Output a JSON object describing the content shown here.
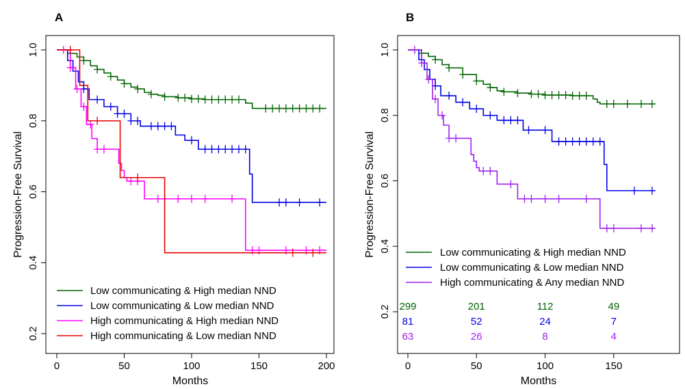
{
  "chart_data": [
    {
      "type": "line",
      "panel": "A",
      "xlabel": "Months",
      "ylabel": "Progression-Free Survival",
      "xlim": [
        0,
        200
      ],
      "ylim": [
        0.2,
        1.0
      ],
      "xticks": [
        0,
        50,
        100,
        150,
        200
      ],
      "yticks": [
        0.2,
        0.4,
        0.6,
        0.8,
        1.0
      ],
      "ytick_labels": [
        "0.2",
        "0.4",
        "0.6",
        "0.8",
        "1.0"
      ],
      "grid": false,
      "legend_position": "bottom-left",
      "series": [
        {
          "name": "Low communicating & High median NND",
          "color": "#006400",
          "x": [
            0,
            10,
            15,
            20,
            25,
            30,
            35,
            40,
            45,
            50,
            55,
            60,
            65,
            70,
            75,
            80,
            90,
            100,
            110,
            120,
            130,
            140,
            145,
            150,
            160,
            170,
            180,
            200
          ],
          "y": [
            1.0,
            0.99,
            0.98,
            0.97,
            0.955,
            0.945,
            0.935,
            0.925,
            0.915,
            0.905,
            0.895,
            0.89,
            0.88,
            0.875,
            0.872,
            0.868,
            0.865,
            0.862,
            0.86,
            0.86,
            0.86,
            0.85,
            0.835,
            0.835,
            0.835,
            0.835,
            0.835,
            0.835
          ],
          "censor_x": [
            10,
            20,
            30,
            40,
            50,
            60,
            70,
            80,
            90,
            95,
            100,
            105,
            110,
            115,
            120,
            125,
            130,
            135,
            155,
            160,
            165,
            170,
            175,
            180,
            185,
            190,
            195
          ]
        },
        {
          "name": "Low communicating & Low median NND",
          "color": "#0000e6",
          "x": [
            0,
            8,
            12,
            16,
            20,
            24,
            35,
            45,
            55,
            62,
            70,
            88,
            95,
            105,
            140,
            143,
            145,
            200
          ],
          "y": [
            1.0,
            0.97,
            0.94,
            0.91,
            0.89,
            0.86,
            0.84,
            0.82,
            0.8,
            0.785,
            0.785,
            0.76,
            0.745,
            0.72,
            0.72,
            0.65,
            0.57,
            0.57
          ],
          "censor_x": [
            20,
            30,
            40,
            45,
            50,
            55,
            60,
            70,
            75,
            80,
            85,
            100,
            110,
            115,
            120,
            125,
            130,
            135,
            140,
            165,
            170,
            180,
            195
          ]
        },
        {
          "name": "High communicating & High median NND",
          "color": "#ff00ff",
          "x": [
            0,
            10,
            14,
            18,
            22,
            26,
            30,
            40,
            46,
            48,
            50,
            52,
            65,
            140,
            200
          ],
          "y": [
            1.0,
            0.95,
            0.89,
            0.84,
            0.79,
            0.75,
            0.72,
            0.72,
            0.68,
            0.66,
            0.64,
            0.63,
            0.58,
            0.435,
            0.435
          ],
          "censor_x": [
            5,
            10,
            15,
            20,
            25,
            30,
            35,
            55,
            60,
            75,
            80,
            90,
            100,
            110,
            130,
            145,
            150,
            170,
            185,
            195
          ]
        },
        {
          "name": "High communicating & Low median NND",
          "color": "#e60000",
          "x": [
            0,
            17,
            23,
            47,
            80,
            200
          ],
          "y": [
            1.0,
            0.9,
            0.8,
            0.64,
            0.428,
            0.428
          ],
          "censor_x": [
            10,
            30,
            60,
            175,
            190
          ]
        }
      ]
    },
    {
      "type": "line",
      "panel": "B",
      "xlabel": "Months",
      "ylabel": "Progression-Free Survival",
      "xlim": [
        0,
        180
      ],
      "ylim": [
        0.2,
        1.0
      ],
      "xticks": [
        0,
        50,
        100,
        150
      ],
      "yticks": [
        0.2,
        0.4,
        0.6,
        0.8,
        1.0
      ],
      "ytick_labels": [
        "0.2",
        "0.4",
        "0.6",
        "0.8",
        "1.0"
      ],
      "grid": false,
      "legend_position": "bottom-left",
      "series": [
        {
          "name": "Low communicating & High median NND",
          "color": "#006400",
          "x": [
            0,
            10,
            15,
            20,
            25,
            30,
            40,
            50,
            55,
            60,
            65,
            70,
            80,
            90,
            100,
            120,
            135,
            138,
            140,
            180
          ],
          "y": [
            1.0,
            0.99,
            0.98,
            0.97,
            0.955,
            0.945,
            0.925,
            0.905,
            0.895,
            0.885,
            0.875,
            0.872,
            0.868,
            0.865,
            0.862,
            0.86,
            0.85,
            0.84,
            0.835,
            0.835
          ],
          "censor_x": [
            10,
            20,
            30,
            40,
            50,
            60,
            70,
            80,
            90,
            95,
            100,
            105,
            110,
            115,
            120,
            125,
            130,
            145,
            150,
            160,
            170,
            178
          ]
        },
        {
          "name": "Low communicating & Low median NND",
          "color": "#0000e6",
          "x": [
            0,
            8,
            12,
            16,
            20,
            24,
            35,
            45,
            55,
            65,
            75,
            84,
            95,
            105,
            140,
            143,
            145,
            180
          ],
          "y": [
            1.0,
            0.97,
            0.94,
            0.91,
            0.89,
            0.86,
            0.84,
            0.82,
            0.8,
            0.785,
            0.785,
            0.755,
            0.755,
            0.72,
            0.72,
            0.65,
            0.57,
            0.57
          ],
          "censor_x": [
            20,
            30,
            40,
            50,
            60,
            70,
            75,
            80,
            88,
            100,
            110,
            115,
            120,
            125,
            130,
            135,
            140,
            165,
            178
          ]
        },
        {
          "name": "High communicating & Any median NND",
          "color": "#a020f0",
          "x": [
            0,
            10,
            14,
            18,
            22,
            26,
            30,
            40,
            46,
            48,
            50,
            52,
            65,
            80,
            140,
            180
          ],
          "y": [
            1.0,
            0.96,
            0.91,
            0.85,
            0.8,
            0.77,
            0.73,
            0.73,
            0.68,
            0.66,
            0.64,
            0.63,
            0.59,
            0.545,
            0.455,
            0.455
          ],
          "censor_x": [
            5,
            10,
            15,
            20,
            25,
            30,
            35,
            55,
            60,
            75,
            85,
            90,
            100,
            110,
            130,
            145,
            150,
            170,
            178
          ]
        }
      ],
      "risk_table": {
        "times": [
          0,
          50,
          100,
          150
        ],
        "rows": [
          {
            "color": "#006400",
            "counts": [
              "299",
              "201",
              "112",
              "49"
            ]
          },
          {
            "color": "#0000e6",
            "counts": [
              "81",
              "52",
              "24",
              "7"
            ]
          },
          {
            "color": "#a020f0",
            "counts": [
              "63",
              "26",
              "8",
              "4"
            ]
          }
        ]
      }
    }
  ]
}
